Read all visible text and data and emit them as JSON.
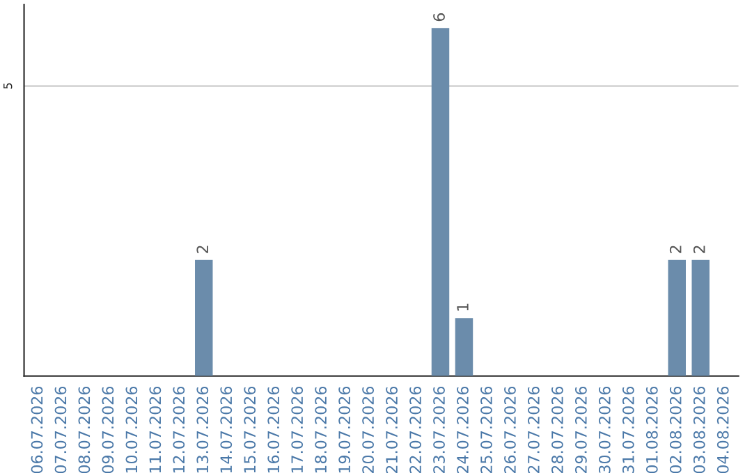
{
  "chart_data": {
    "type": "bar",
    "categories": [
      "06.07.2026",
      "07.07.2026",
      "08.07.2026",
      "09.07.2026",
      "10.07.2026",
      "11.07.2026",
      "12.07.2026",
      "13.07.2026",
      "14.07.2026",
      "15.07.2026",
      "16.07.2026",
      "17.07.2026",
      "18.07.2026",
      "19.07.2026",
      "20.07.2026",
      "21.07.2026",
      "22.07.2026",
      "23.07.2026",
      "24.07.2026",
      "25.07.2026",
      "26.07.2026",
      "27.07.2026",
      "28.07.2026",
      "29.07.2026",
      "30.07.2026",
      "31.07.2026",
      "01.08.2026",
      "02.08.2026",
      "03.08.2026",
      "04.08.2026"
    ],
    "values": [
      0,
      0,
      0,
      0,
      0,
      0,
      0,
      2,
      0,
      0,
      0,
      0,
      0,
      0,
      0,
      0,
      0,
      6,
      1,
      0,
      0,
      0,
      0,
      0,
      0,
      0,
      0,
      2,
      2,
      0
    ],
    "value_labels": [
      null,
      null,
      null,
      null,
      null,
      null,
      null,
      "2",
      null,
      null,
      null,
      null,
      null,
      null,
      null,
      null,
      null,
      "6",
      "1",
      null,
      null,
      null,
      null,
      null,
      null,
      null,
      null,
      "2",
      "2",
      null
    ],
    "color": "#6b8cab",
    "ylim": [
      0,
      6.4
    ],
    "yticks": [
      5
    ],
    "grid": "y",
    "legend": false
  }
}
